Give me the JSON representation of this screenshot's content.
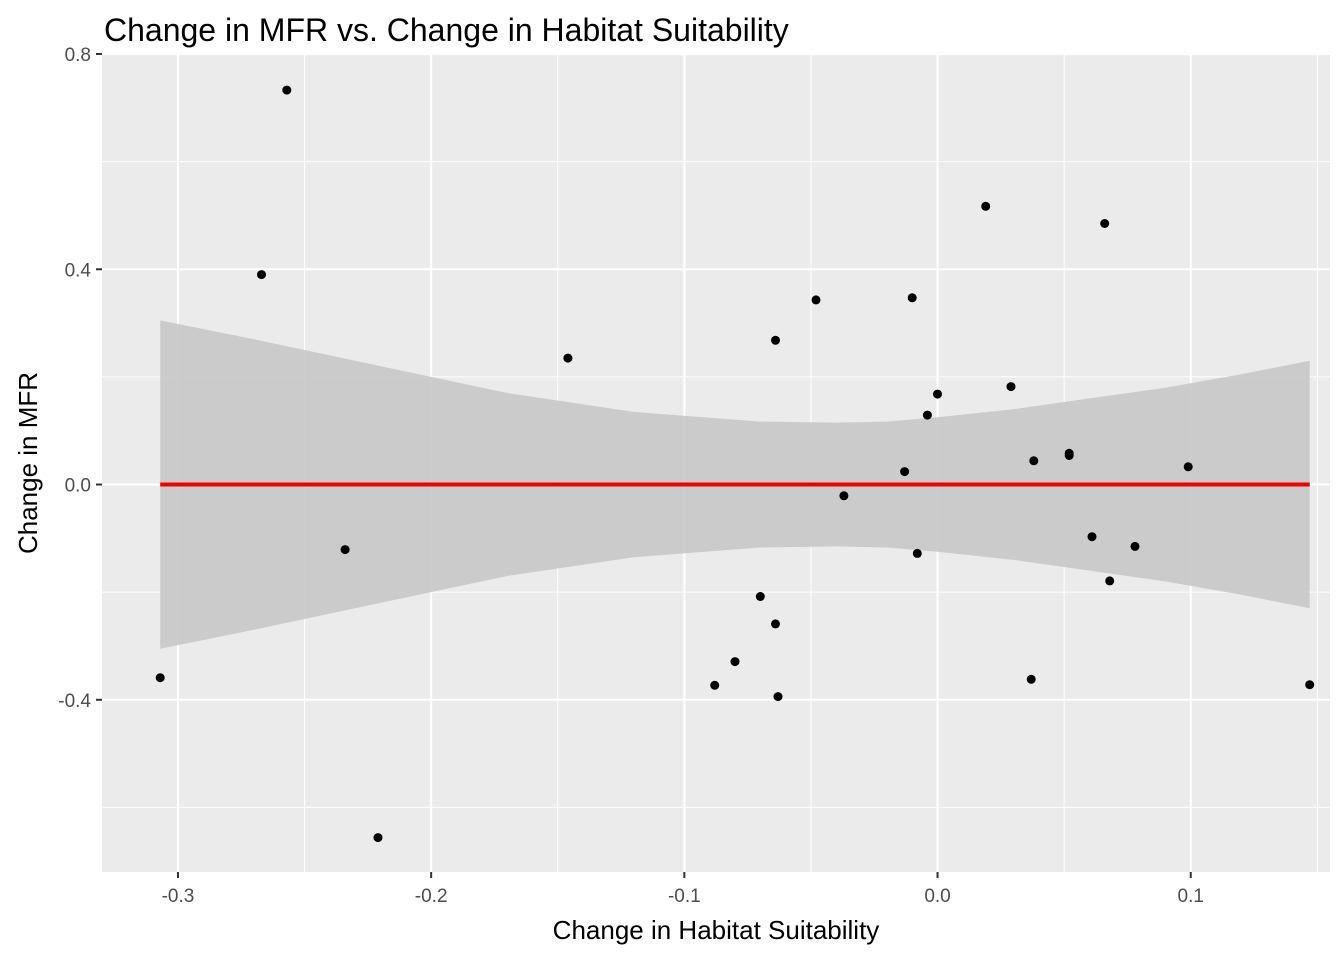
{
  "chart_data": {
    "type": "scatter",
    "title": "Change in MFR vs. Change in Habitat Suitability",
    "xlabel": "Change in Habitat Suitability",
    "ylabel": "Change in MFR",
    "xlim": [
      -0.33,
      0.155
    ],
    "ylim": [
      -0.72,
      0.8
    ],
    "x_ticks": [
      -0.3,
      -0.2,
      -0.1,
      0.0,
      0.1
    ],
    "x_tick_labels": [
      "-0.3",
      "-0.2",
      "-0.1",
      "0.0",
      "0.1"
    ],
    "y_ticks": [
      -0.4,
      0.0,
      0.4,
      0.8
    ],
    "y_tick_labels": [
      "-0.4",
      "0.0",
      "0.4",
      "0.8"
    ],
    "grid": true,
    "panel_background": "#ebebeb",
    "grid_color": "#ffffff",
    "point_color": "#000000",
    "points": [
      {
        "x": -0.307,
        "y": -0.359
      },
      {
        "x": -0.267,
        "y": 0.39
      },
      {
        "x": -0.257,
        "y": 0.733
      },
      {
        "x": -0.234,
        "y": -0.121
      },
      {
        "x": -0.221,
        "y": -0.656
      },
      {
        "x": -0.146,
        "y": 0.235
      },
      {
        "x": -0.088,
        "y": -0.373
      },
      {
        "x": -0.08,
        "y": -0.329
      },
      {
        "x": -0.07,
        "y": -0.208
      },
      {
        "x": -0.064,
        "y": 0.268
      },
      {
        "x": -0.064,
        "y": -0.259
      },
      {
        "x": -0.063,
        "y": -0.394
      },
      {
        "x": -0.048,
        "y": 0.343
      },
      {
        "x": -0.037,
        "y": -0.021
      },
      {
        "x": -0.013,
        "y": 0.024
      },
      {
        "x": -0.01,
        "y": 0.347
      },
      {
        "x": -0.008,
        "y": -0.128
      },
      {
        "x": -0.004,
        "y": 0.129
      },
      {
        "x": 0.0,
        "y": 0.168
      },
      {
        "x": 0.019,
        "y": 0.517
      },
      {
        "x": 0.029,
        "y": 0.182
      },
      {
        "x": 0.037,
        "y": -0.362
      },
      {
        "x": 0.038,
        "y": 0.044
      },
      {
        "x": 0.052,
        "y": 0.054
      },
      {
        "x": 0.052,
        "y": 0.058
      },
      {
        "x": 0.061,
        "y": -0.097
      },
      {
        "x": 0.066,
        "y": 0.485
      },
      {
        "x": 0.068,
        "y": -0.179
      },
      {
        "x": 0.078,
        "y": -0.115
      },
      {
        "x": 0.099,
        "y": 0.033
      },
      {
        "x": 0.147,
        "y": -0.372
      }
    ],
    "fit_line": {
      "color": "#ee0000",
      "x": [
        -0.307,
        0.147
      ],
      "y": [
        0.0,
        0.0
      ]
    },
    "confidence_band": {
      "color": "#c8c8c8",
      "x": [
        -0.307,
        -0.27,
        -0.22,
        -0.17,
        -0.12,
        -0.07,
        -0.04,
        -0.02,
        0.0,
        0.03,
        0.06,
        0.09,
        0.12,
        0.147
      ],
      "upper": [
        0.305,
        0.27,
        0.22,
        0.17,
        0.135,
        0.117,
        0.115,
        0.117,
        0.125,
        0.14,
        0.16,
        0.18,
        0.205,
        0.23
      ],
      "lower": [
        -0.305,
        -0.27,
        -0.22,
        -0.17,
        -0.135,
        -0.117,
        -0.115,
        -0.117,
        -0.125,
        -0.14,
        -0.16,
        -0.18,
        -0.205,
        -0.23
      ]
    }
  }
}
